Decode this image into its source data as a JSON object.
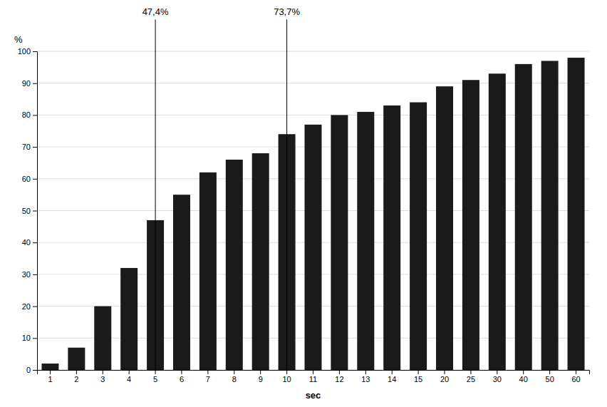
{
  "chart_data": {
    "type": "bar",
    "categories": [
      "1",
      "2",
      "3",
      "4",
      "5",
      "6",
      "7",
      "8",
      "9",
      "10",
      "11",
      "12",
      "13",
      "14",
      "15",
      "20",
      "25",
      "30",
      "40",
      "50",
      "60"
    ],
    "values": [
      2,
      7,
      20,
      32,
      47,
      55,
      62,
      66,
      68,
      74,
      77,
      80,
      81,
      83,
      84,
      89,
      91,
      93,
      96,
      97,
      98
    ],
    "color": "#1a1a1a",
    "xlabel": "sec",
    "ylabel": "%",
    "ylim": [
      0,
      100
    ],
    "yticks": [
      0,
      10,
      20,
      30,
      40,
      50,
      60,
      70,
      80,
      90,
      100
    ],
    "grid": true,
    "annotations": [
      {
        "text": "47,4%",
        "x": "5"
      },
      {
        "text": "73,7%",
        "x": "10"
      }
    ]
  }
}
